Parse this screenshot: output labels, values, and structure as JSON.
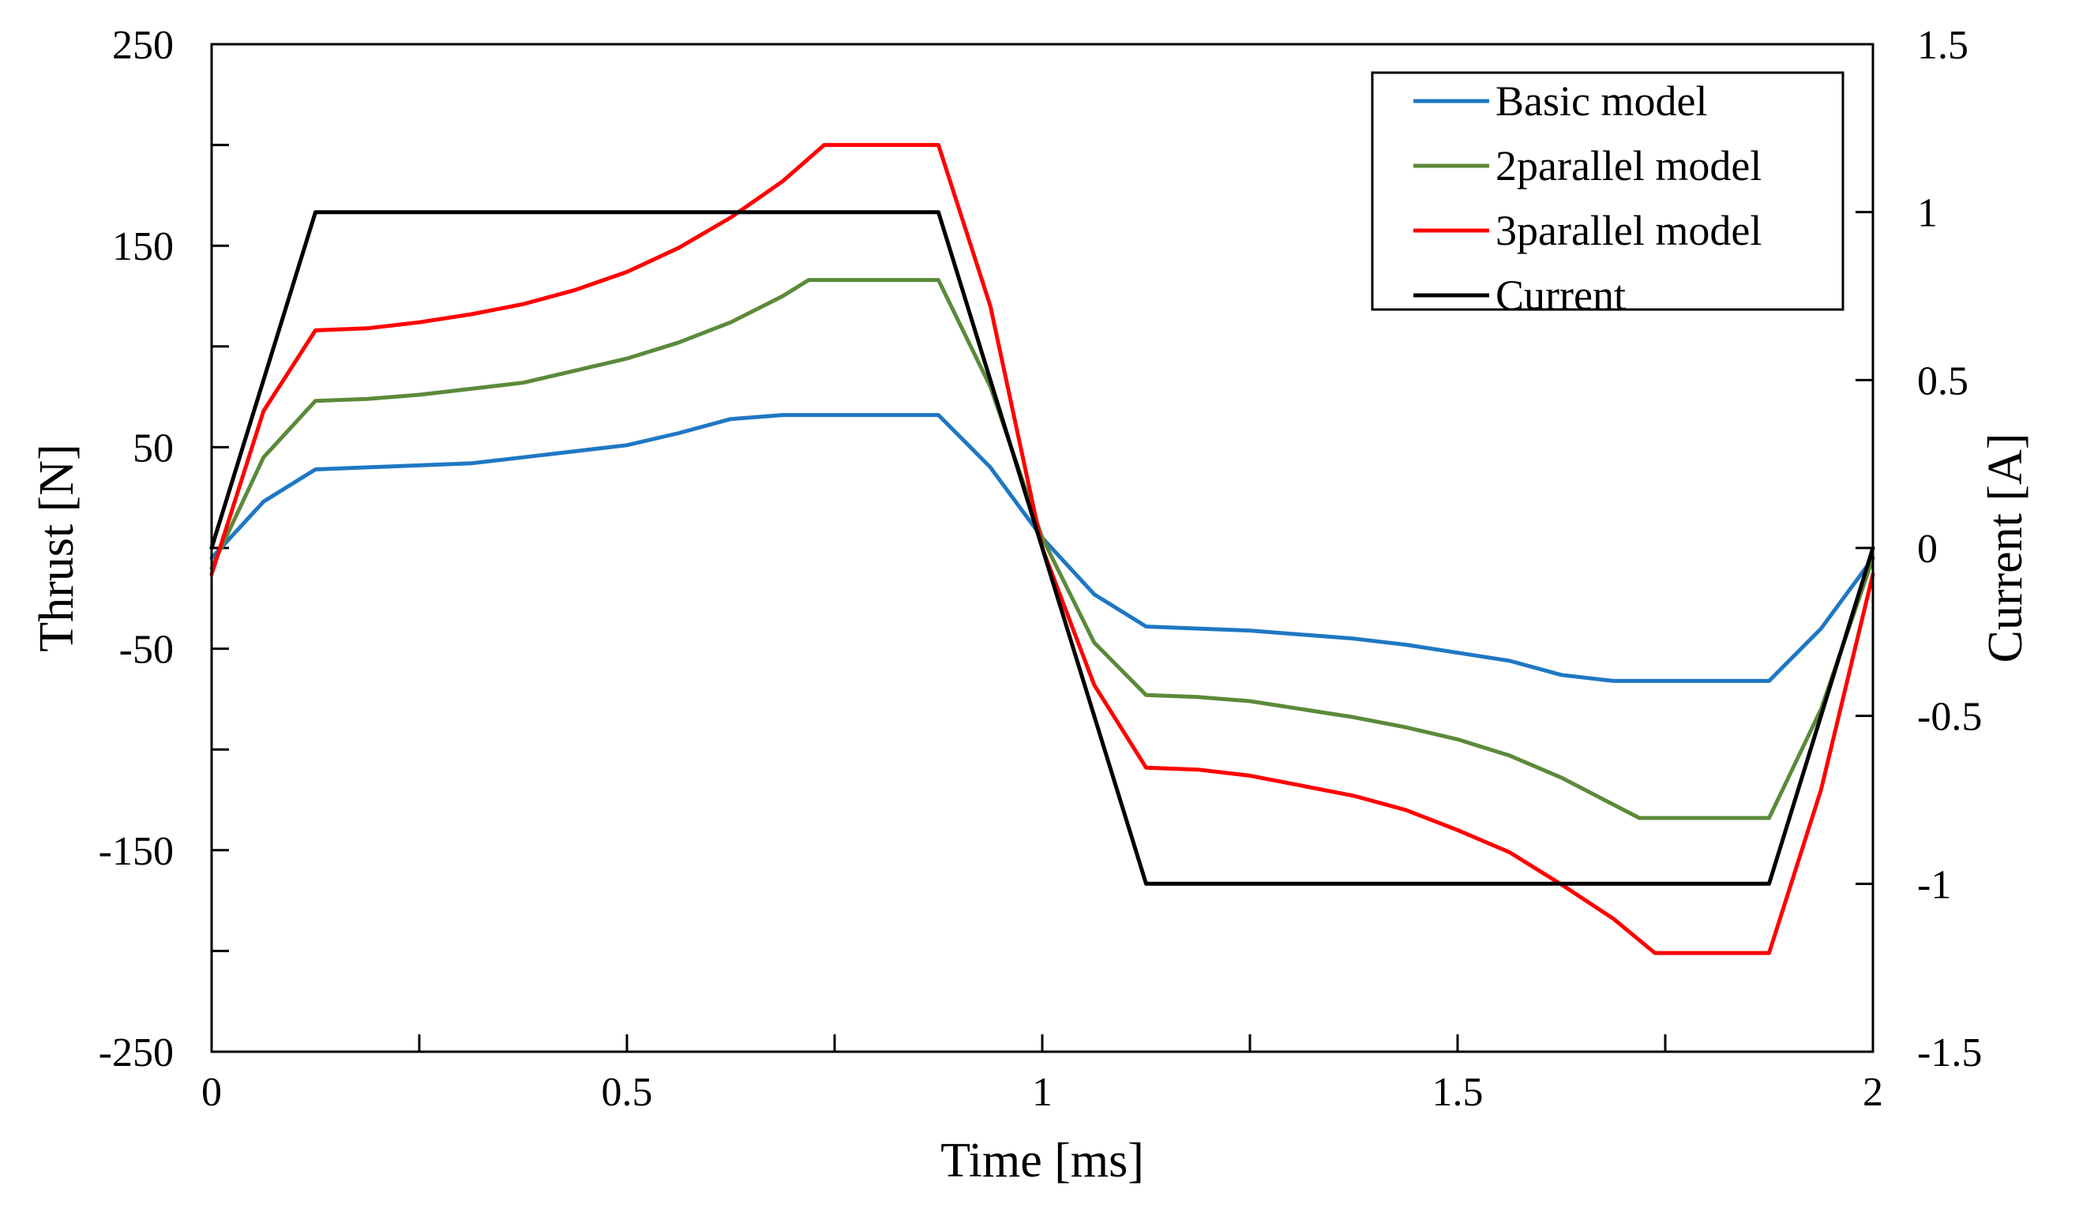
{
  "chart_data": {
    "type": "line",
    "xlabel": "Time [ms]",
    "ylabel_left": "Thrust [N]",
    "ylabel_right": "Current [A]",
    "xlim": [
      0,
      2
    ],
    "ylim_left": [
      -250,
      250
    ],
    "ylim_right": [
      -1.5,
      1.5
    ],
    "x_ticks": [
      "0",
      "0.5",
      "1",
      "1.5",
      "2"
    ],
    "y_ticks_left": [
      "250",
      "150",
      "50",
      "-50",
      "-150",
      "-250"
    ],
    "y_ticks_right": [
      "1.5",
      "1",
      "0.5",
      "0",
      "-0.5",
      "-1",
      "-1.5"
    ],
    "legend_position": "top-right",
    "series": [
      {
        "name": "Basic model",
        "axis": "left",
        "color": "#1f77c4",
        "points": [
          [
            0,
            -5
          ],
          [
            0.0625,
            23
          ],
          [
            0.125,
            39
          ],
          [
            0.1875,
            40
          ],
          [
            0.25,
            41
          ],
          [
            0.3125,
            42
          ],
          [
            0.375,
            45
          ],
          [
            0.4375,
            48
          ],
          [
            0.5,
            51
          ],
          [
            0.5625,
            57
          ],
          [
            0.625,
            64
          ],
          [
            0.6875,
            66
          ],
          [
            0.75,
            66
          ],
          [
            0.8125,
            66
          ],
          [
            0.875,
            66
          ],
          [
            0.9375,
            40
          ],
          [
            1,
            5
          ],
          [
            1.0625,
            -23
          ],
          [
            1.125,
            -39
          ],
          [
            1.1875,
            -40
          ],
          [
            1.25,
            -41
          ],
          [
            1.3125,
            -43
          ],
          [
            1.375,
            -45
          ],
          [
            1.4375,
            -48
          ],
          [
            1.5,
            -52
          ],
          [
            1.5625,
            -56
          ],
          [
            1.625,
            -63
          ],
          [
            1.6875,
            -66
          ],
          [
            1.75,
            -66
          ],
          [
            1.8125,
            -66
          ],
          [
            1.875,
            -66
          ],
          [
            1.9375,
            -40
          ],
          [
            2,
            -5
          ]
        ]
      },
      {
        "name": "2parallel model",
        "axis": "left",
        "color": "#5b8a3a",
        "points": [
          [
            0,
            -10
          ],
          [
            0.0625,
            45
          ],
          [
            0.125,
            73
          ],
          [
            0.1875,
            74
          ],
          [
            0.25,
            76
          ],
          [
            0.3125,
            79
          ],
          [
            0.375,
            82
          ],
          [
            0.4375,
            88
          ],
          [
            0.5,
            94
          ],
          [
            0.5625,
            102
          ],
          [
            0.625,
            112
          ],
          [
            0.6875,
            125
          ],
          [
            0.7188,
            133
          ],
          [
            0.75,
            133
          ],
          [
            0.8125,
            133
          ],
          [
            0.875,
            133
          ],
          [
            0.9375,
            80
          ],
          [
            1,
            5
          ],
          [
            1.0625,
            -47
          ],
          [
            1.125,
            -73
          ],
          [
            1.1875,
            -74
          ],
          [
            1.25,
            -76
          ],
          [
            1.3125,
            -80
          ],
          [
            1.375,
            -84
          ],
          [
            1.4375,
            -89
          ],
          [
            1.5,
            -95
          ],
          [
            1.5625,
            -103
          ],
          [
            1.625,
            -114
          ],
          [
            1.7188,
            -134
          ],
          [
            1.75,
            -134
          ],
          [
            1.8125,
            -134
          ],
          [
            1.875,
            -134
          ],
          [
            1.9375,
            -80
          ],
          [
            2,
            -5
          ]
        ]
      },
      {
        "name": "3parallel model",
        "axis": "left",
        "color": "#ff0000",
        "points": [
          [
            0,
            -13
          ],
          [
            0.0625,
            68
          ],
          [
            0.125,
            108
          ],
          [
            0.1875,
            109
          ],
          [
            0.25,
            112
          ],
          [
            0.3125,
            116
          ],
          [
            0.375,
            121
          ],
          [
            0.4375,
            128
          ],
          [
            0.5,
            137
          ],
          [
            0.5625,
            149
          ],
          [
            0.625,
            164
          ],
          [
            0.6875,
            182
          ],
          [
            0.7375,
            200
          ],
          [
            0.8125,
            200
          ],
          [
            0.875,
            200
          ],
          [
            0.9375,
            120
          ],
          [
            1,
            0
          ],
          [
            1.0625,
            -68
          ],
          [
            1.125,
            -109
          ],
          [
            1.1875,
            -110
          ],
          [
            1.25,
            -113
          ],
          [
            1.3125,
            -118
          ],
          [
            1.375,
            -123
          ],
          [
            1.4375,
            -130
          ],
          [
            1.5,
            -140
          ],
          [
            1.5625,
            -151
          ],
          [
            1.625,
            -167
          ],
          [
            1.6875,
            -184
          ],
          [
            1.7375,
            -201
          ],
          [
            1.8125,
            -201
          ],
          [
            1.875,
            -201
          ],
          [
            1.9375,
            -120
          ],
          [
            2,
            -13
          ]
        ]
      },
      {
        "name": "Current",
        "axis": "right",
        "color": "#000000",
        "points": [
          [
            0,
            0
          ],
          [
            0.125,
            1
          ],
          [
            0.875,
            1
          ],
          [
            1.125,
            -1
          ],
          [
            1.875,
            -1
          ],
          [
            2,
            0
          ]
        ]
      }
    ]
  }
}
